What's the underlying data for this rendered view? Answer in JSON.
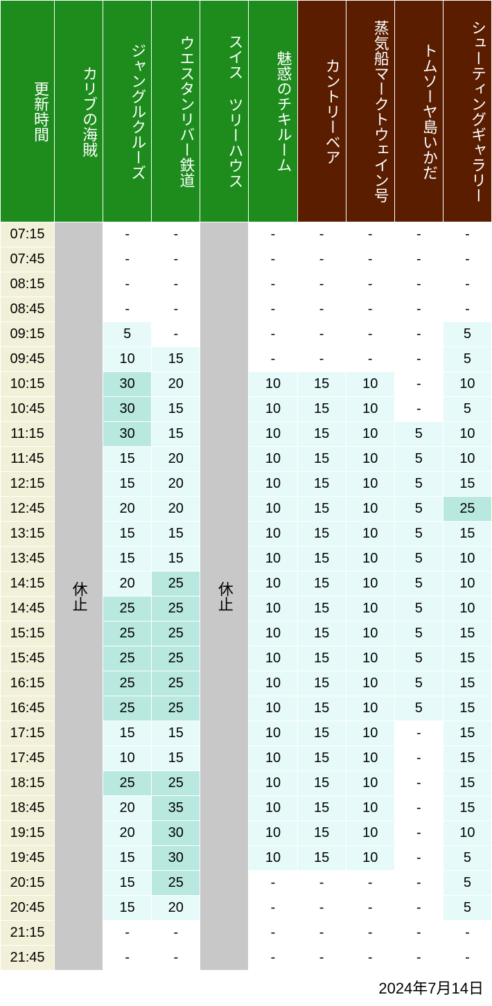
{
  "footer_date": "2024年7月14日",
  "closed_text": "休止",
  "header_green_bg": "#1d8c1d",
  "header_brown_bg": "#5a1d00",
  "header_text_color": "#ffffff",
  "time_bg": "#f2f0d8",
  "closed_bg": "#c8c8c8",
  "cell_bg_white": "#ffffff",
  "cell_bg_light": "#e6fafa",
  "cell_bg_mid": "#b8e8e0",
  "font_size_header": 22,
  "font_size_cell": 20,
  "columns": [
    {
      "label": "更新時間",
      "key": "time",
      "group": "green"
    },
    {
      "label": "カリブの海賊",
      "key": "c1",
      "group": "green"
    },
    {
      "label": "ジャングルクルーズ",
      "key": "c2",
      "group": "green"
    },
    {
      "label": "ウエスタンリバー鉄道",
      "key": "c3",
      "group": "green"
    },
    {
      "label": "スイス ツリーハウス",
      "key": "c4",
      "group": "green"
    },
    {
      "label": "魅惑のチキルーム",
      "key": "c5",
      "group": "green"
    },
    {
      "label": "カントリーベア",
      "key": "c6",
      "group": "brown"
    },
    {
      "label": "蒸気船マークトウェイン号",
      "key": "c7",
      "group": "brown"
    },
    {
      "label": "トムソーヤ島いかだ",
      "key": "c8",
      "group": "brown"
    },
    {
      "label": "シューティングギャラリー",
      "key": "c9",
      "group": "brown"
    }
  ],
  "closed_columns": [
    "c1",
    "c4"
  ],
  "times": [
    "07:15",
    "07:45",
    "08:15",
    "08:45",
    "09:15",
    "09:45",
    "10:15",
    "10:45",
    "11:15",
    "11:45",
    "12:15",
    "12:45",
    "13:15",
    "13:45",
    "14:15",
    "14:45",
    "15:15",
    "15:45",
    "16:15",
    "16:45",
    "17:15",
    "17:45",
    "18:15",
    "18:45",
    "19:15",
    "19:45",
    "20:15",
    "20:45",
    "21:15",
    "21:45"
  ],
  "rows": [
    {
      "c2": "-",
      "c3": "-",
      "c5": "-",
      "c6": "-",
      "c7": "-",
      "c8": "-",
      "c9": "-"
    },
    {
      "c2": "-",
      "c3": "-",
      "c5": "-",
      "c6": "-",
      "c7": "-",
      "c8": "-",
      "c9": "-"
    },
    {
      "c2": "-",
      "c3": "-",
      "c5": "-",
      "c6": "-",
      "c7": "-",
      "c8": "-",
      "c9": "-"
    },
    {
      "c2": "-",
      "c3": "-",
      "c5": "-",
      "c6": "-",
      "c7": "-",
      "c8": "-",
      "c9": "-"
    },
    {
      "c2": "5",
      "c3": "-",
      "c5": "-",
      "c6": "-",
      "c7": "-",
      "c8": "-",
      "c9": "5"
    },
    {
      "c2": "10",
      "c3": "15",
      "c5": "-",
      "c6": "-",
      "c7": "-",
      "c8": "-",
      "c9": "5"
    },
    {
      "c2": "30",
      "c3": "20",
      "c5": "10",
      "c6": "15",
      "c7": "10",
      "c8": "-",
      "c9": "10"
    },
    {
      "c2": "30",
      "c3": "15",
      "c5": "10",
      "c6": "15",
      "c7": "10",
      "c8": "-",
      "c9": "5"
    },
    {
      "c2": "30",
      "c3": "15",
      "c5": "10",
      "c6": "15",
      "c7": "10",
      "c8": "5",
      "c9": "10"
    },
    {
      "c2": "15",
      "c3": "20",
      "c5": "10",
      "c6": "15",
      "c7": "10",
      "c8": "5",
      "c9": "10"
    },
    {
      "c2": "15",
      "c3": "20",
      "c5": "10",
      "c6": "15",
      "c7": "10",
      "c8": "5",
      "c9": "15"
    },
    {
      "c2": "20",
      "c3": "20",
      "c5": "10",
      "c6": "15",
      "c7": "10",
      "c8": "5",
      "c9": "25"
    },
    {
      "c2": "15",
      "c3": "15",
      "c5": "10",
      "c6": "15",
      "c7": "10",
      "c8": "5",
      "c9": "15"
    },
    {
      "c2": "15",
      "c3": "15",
      "c5": "10",
      "c6": "15",
      "c7": "10",
      "c8": "5",
      "c9": "10"
    },
    {
      "c2": "20",
      "c3": "25",
      "c5": "10",
      "c6": "15",
      "c7": "10",
      "c8": "5",
      "c9": "10"
    },
    {
      "c2": "25",
      "c3": "25",
      "c5": "10",
      "c6": "15",
      "c7": "10",
      "c8": "5",
      "c9": "10"
    },
    {
      "c2": "25",
      "c3": "25",
      "c5": "10",
      "c6": "15",
      "c7": "10",
      "c8": "5",
      "c9": "15"
    },
    {
      "c2": "25",
      "c3": "25",
      "c5": "10",
      "c6": "15",
      "c7": "10",
      "c8": "5",
      "c9": "15"
    },
    {
      "c2": "25",
      "c3": "25",
      "c5": "10",
      "c6": "15",
      "c7": "10",
      "c8": "5",
      "c9": "15"
    },
    {
      "c2": "25",
      "c3": "25",
      "c5": "10",
      "c6": "15",
      "c7": "10",
      "c8": "5",
      "c9": "15"
    },
    {
      "c2": "15",
      "c3": "15",
      "c5": "10",
      "c6": "15",
      "c7": "10",
      "c8": "-",
      "c9": "15"
    },
    {
      "c2": "10",
      "c3": "15",
      "c5": "10",
      "c6": "15",
      "c7": "10",
      "c8": "-",
      "c9": "15"
    },
    {
      "c2": "25",
      "c3": "25",
      "c5": "10",
      "c6": "15",
      "c7": "10",
      "c8": "-",
      "c9": "15"
    },
    {
      "c2": "20",
      "c3": "35",
      "c5": "10",
      "c6": "15",
      "c7": "10",
      "c8": "-",
      "c9": "15"
    },
    {
      "c2": "20",
      "c3": "30",
      "c5": "10",
      "c6": "15",
      "c7": "10",
      "c8": "-",
      "c9": "10"
    },
    {
      "c2": "15",
      "c3": "30",
      "c5": "10",
      "c6": "15",
      "c7": "10",
      "c8": "-",
      "c9": "5"
    },
    {
      "c2": "15",
      "c3": "25",
      "c5": "-",
      "c6": "-",
      "c7": "-",
      "c8": "-",
      "c9": "5"
    },
    {
      "c2": "15",
      "c3": "20",
      "c5": "-",
      "c6": "-",
      "c7": "-",
      "c8": "-",
      "c9": "5"
    },
    {
      "c2": "-",
      "c3": "-",
      "c5": "-",
      "c6": "-",
      "c7": "-",
      "c8": "-",
      "c9": "-"
    },
    {
      "c2": "-",
      "c3": "-",
      "c5": "-",
      "c6": "-",
      "c7": "-",
      "c8": "-",
      "c9": "-"
    }
  ]
}
